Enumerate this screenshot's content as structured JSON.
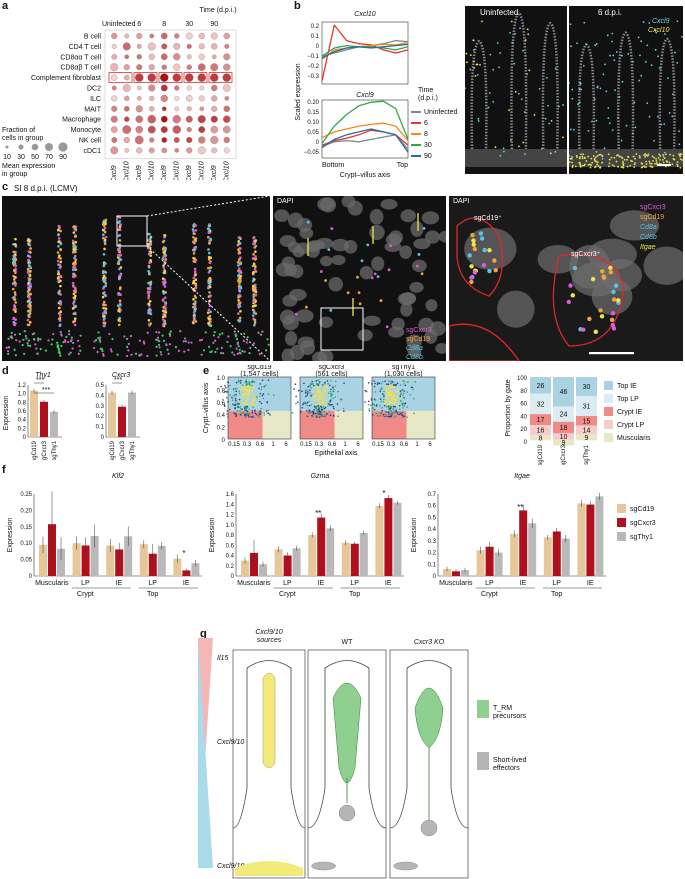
{
  "panels": {
    "a": "a",
    "b": "b",
    "c": "c",
    "d": "d",
    "e": "e",
    "f": "f",
    "g": "g"
  },
  "a": {
    "time_header": "Time (d.p.i.)",
    "conditions": [
      "Uninfected",
      "6",
      "8",
      "30",
      "90"
    ],
    "genes": [
      "Cxcl9",
      "Cxcl10"
    ],
    "cell_types": [
      "B cell",
      "CD4 T cell",
      "CD8αα T cell",
      "CD8αβ T cell",
      "Complement fibroblast",
      "DC2",
      "ILC",
      "MAIT",
      "Macrophage",
      "Monocyte",
      "NK cell",
      "cDC1"
    ],
    "size_legend_title": "Fraction of\ncells in group",
    "size_legend_values": [
      "10",
      "30",
      "50",
      "70",
      "90"
    ],
    "color_legend_title": "Mean expression\nin group",
    "color_legend_ticks": [
      "0",
      "1"
    ]
  },
  "b": {
    "top_title": "Cxcl10",
    "bottom_title": "Cxcl9",
    "ylabel": "Scaled expression",
    "xlabel": "Crypt–villus axis",
    "x_left": "Bottom",
    "x_right": "Top",
    "top_yticks": [
      "0.2",
      "0.1",
      "0",
      "−0.1",
      "−0.2",
      "−0.3"
    ],
    "bottom_yticks": [
      "0.20",
      "0.15",
      "0.10",
      "0.05",
      "0",
      "−0.05"
    ],
    "legend_title": "Time\n(d.p.i.)",
    "legend": [
      {
        "name": "Uninfected",
        "color": "#7b8a8f"
      },
      {
        "name": "6",
        "color": "#e8342a"
      },
      {
        "name": "8",
        "color": "#f08a1c"
      },
      {
        "name": "30",
        "color": "#2fa84f"
      },
      {
        "name": "90",
        "color": "#2b6a9e"
      }
    ],
    "image_labels": [
      "Uninfected",
      "6 d.p.i."
    ],
    "image_gene_labels": [
      "Cxcl9",
      "Cxcl10"
    ]
  },
  "c": {
    "title": "SI 8 d.p.i. (LCMV)",
    "dapi": "DAPI",
    "mid_legend": [
      "sgCxcr3",
      "sgCd19",
      "Cd8a",
      "Cd8b"
    ],
    "right_legend": [
      "sgCxcr3",
      "sgCd19",
      "Cd8a",
      "Cd8b",
      "Itgae"
    ],
    "right_cells": [
      "sgCd19⁺",
      "sgCxcr3⁺"
    ]
  },
  "d": {
    "genes": [
      "Thy1",
      "Cxcr3"
    ],
    "ylabel": "Expression",
    "groups": [
      "sgCd19",
      "sgCxcr3",
      "sgThy1"
    ],
    "sig": [
      "***",
      "***",
      "***"
    ],
    "thy1_values": [
      1.16,
      0.88,
      0.63
    ],
    "cxcr3_values": [
      0.47,
      0.32,
      0.47
    ],
    "thy1_yticks": [
      "1.2",
      "1.0",
      "0.8",
      "0.6",
      "0.4",
      "0.2",
      "0"
    ],
    "cxcr3_yticks": [
      "0.5",
      "0.4",
      "0.3",
      "0.2",
      "0.1",
      "0"
    ]
  },
  "e": {
    "plots": [
      {
        "name": "sgCd19",
        "cells": "(1,547 cells)"
      },
      {
        "name": "sgCxcr3",
        "cells": "(561 cells)"
      },
      {
        "name": "sgThy1",
        "cells": "(1,030 cells)"
      }
    ],
    "ylabel": "Crypt–villus axis",
    "xlabel": "Epithelial axis",
    "yticks": [
      "1.0",
      "0.8",
      "0.6",
      "0.4",
      "0.2",
      "0"
    ],
    "xticks": [
      "0.15",
      "0.3",
      "0.6",
      "1",
      "6"
    ],
    "bar_ylabel": "Proportion by gate",
    "bar_yticks": [
      "100",
      "80",
      "60",
      "40",
      "20",
      "0"
    ],
    "bar_groups": [
      "sgCd19",
      "sgCxcr3",
      "sgThy1"
    ],
    "gates": [
      {
        "name": "Top IE",
        "color": "#a9d3e3"
      },
      {
        "name": "Top LP",
        "color": "#dcecf2"
      },
      {
        "name": "Crypt IE",
        "color": "#ef8a86"
      },
      {
        "name": "Crypt LP",
        "color": "#f6cdcb"
      },
      {
        "name": "Muscularis",
        "color": "#e6e8c8"
      }
    ],
    "proportions": [
      [
        26,
        32,
        17,
        16,
        8
      ],
      [
        46,
        24,
        18,
        10,
        9
      ],
      [
        30,
        31,
        15,
        14,
        9
      ]
    ]
  },
  "f": {
    "genes": [
      "Klf2",
      "Gzma",
      "Itgae"
    ],
    "ylabel": "Expression",
    "compartments": [
      "Muscularis",
      "LP",
      "IE",
      "LP",
      "IE"
    ],
    "regions": [
      "Crypt",
      "Top"
    ],
    "legend": [
      {
        "name": "sgCd19",
        "color": "#e6c79a"
      },
      {
        "name": "sgCxcr3",
        "color": "#b0101e"
      },
      {
        "name": "sgThy1",
        "color": "#b9b9b9"
      }
    ],
    "klf2": {
      "yticks": [
        "0.25",
        "0.20",
        "0.15",
        "0.10",
        "0.05",
        "0"
      ],
      "max": 0.25,
      "values": [
        [
          0.095,
          0.158,
          0.083
        ],
        [
          0.1,
          0.093,
          0.122
        ],
        [
          0.093,
          0.081,
          0.121
        ],
        [
          0.097,
          0.068,
          0.092
        ],
        [
          0.053,
          0.017,
          0.039
        ]
      ],
      "err": [
        [
          0.025,
          0.1,
          0.035
        ],
        [
          0.02,
          0.025,
          0.035
        ],
        [
          0.02,
          0.02,
          0.03
        ],
        [
          0.012,
          0.03,
          0.012
        ],
        [
          0.012,
          0.005,
          0.01
        ]
      ],
      "sig": "*"
    },
    "gzma": {
      "yticks": [
        "1.6",
        "1.4",
        "1.2",
        "1.0",
        "0.8",
        "0.6",
        "0.4",
        "0.2",
        "0"
      ],
      "max": 1.6,
      "values": [
        [
          0.3,
          0.45,
          0.23
        ],
        [
          0.52,
          0.4,
          0.54
        ],
        [
          0.8,
          1.14,
          0.93
        ],
        [
          0.65,
          0.63,
          0.84
        ],
        [
          1.37,
          1.52,
          1.43
        ]
      ],
      "err": [
        [
          0.06,
          0.25,
          0.05
        ],
        [
          0.06,
          0.06,
          0.05
        ],
        [
          0.05,
          0.08,
          0.06
        ],
        [
          0.05,
          0.04,
          0.04
        ],
        [
          0.05,
          0.06,
          0.04
        ]
      ],
      "sig": [
        "**",
        "*"
      ]
    },
    "itgae": {
      "yticks": [
        "0.7",
        "0.6",
        "0.5",
        "0.4",
        "0.3",
        "0.2",
        "0.1",
        "0"
      ],
      "max": 0.7,
      "values": [
        [
          0.06,
          0.04,
          0.05
        ],
        [
          0.22,
          0.25,
          0.2
        ],
        [
          0.36,
          0.56,
          0.45
        ],
        [
          0.33,
          0.38,
          0.32
        ],
        [
          0.62,
          0.61,
          0.68
        ]
      ],
      "err": [
        [
          0.02,
          0.02,
          0.02
        ],
        [
          0.03,
          0.04,
          0.03
        ],
        [
          0.03,
          0.05,
          0.04
        ],
        [
          0.02,
          0.03,
          0.03
        ],
        [
          0.03,
          0.03,
          0.03
        ]
      ],
      "sig": "**"
    }
  },
  "g": {
    "gradient_labels": [
      "Il15",
      "Cxcl9/10",
      "Cxcl9/10"
    ],
    "headers": [
      "Cxcl9/10\nsources",
      "WT",
      "Cxcr3 KO"
    ],
    "legend": [
      {
        "name": "T_RM\nprecursors",
        "color": "#8fcf8f"
      },
      {
        "name": "Short-lived\neffectors",
        "color": "#b5b5b5"
      }
    ]
  }
}
